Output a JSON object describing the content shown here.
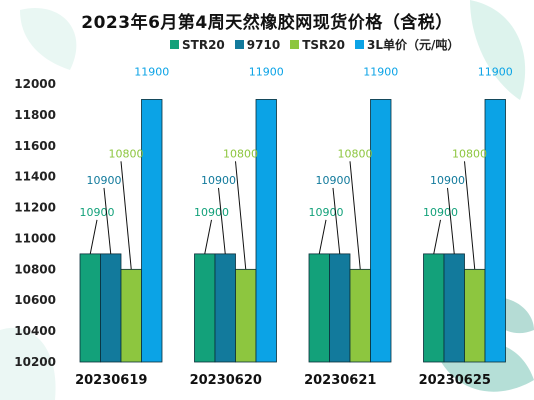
{
  "chart_data": {
    "type": "bar",
    "title": "2023年6月第4周天然橡胶网现货价格（含税）",
    "categories": [
      "20230619",
      "20230620",
      "20230621",
      "20230625"
    ],
    "series": [
      {
        "name": "STR20",
        "color": "#13a17a",
        "values": [
          10900,
          10900,
          10900,
          10900
        ]
      },
      {
        "name": "9710",
        "color": "#127a9c",
        "values": [
          10900,
          10900,
          10900,
          10900
        ]
      },
      {
        "name": "TSR20",
        "color": "#8dc63f",
        "values": [
          10800,
          10800,
          10800,
          10800
        ]
      },
      {
        "name": "3L单价（元/吨）",
        "color": "#0ba3e6",
        "values": [
          11900,
          11900,
          11900,
          11900
        ]
      }
    ],
    "ylim": [
      10200,
      12000
    ],
    "yticks": [
      10200,
      10400,
      10600,
      10800,
      11000,
      11200,
      11400,
      11600,
      11800,
      12000
    ],
    "legend_position": "top",
    "grid": false,
    "xlabel": "",
    "ylabel": ""
  }
}
